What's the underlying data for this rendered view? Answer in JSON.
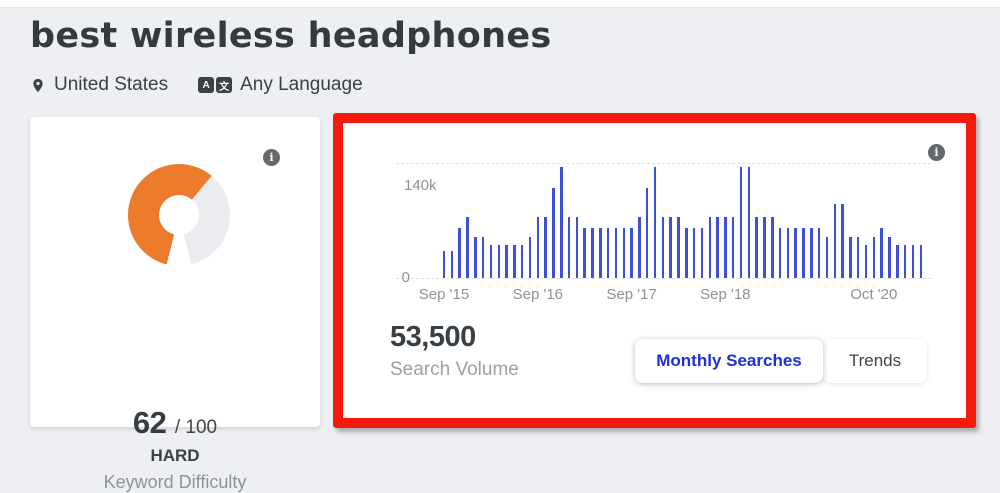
{
  "header": {
    "title": "best wireless headphones",
    "location": "United States",
    "language": "Any Language"
  },
  "difficulty": {
    "score": "62",
    "out_of": "/ 100",
    "level": "HARD",
    "label": "Keyword Difficulty",
    "gauge_color": "#ec7b2c",
    "track_color": "#ebecf0",
    "info_glyph": "i"
  },
  "volume": {
    "value": "53,500",
    "label": "Search Volume",
    "info_glyph": "i"
  },
  "tabs": {
    "monthly": "Monthly Searches",
    "trends": "Trends"
  },
  "chart_data": {
    "type": "bar",
    "title": "",
    "xlabel": "",
    "ylabel": "",
    "bar_color": "#3c50d8",
    "ylim": [
      0,
      140000
    ],
    "y_ticks": [
      "140k",
      "0"
    ],
    "grid": "dashed horizontal lines at 140k and 0",
    "legend": "none",
    "x_ticks": [
      {
        "bar_index": 0,
        "label": "Sep '15"
      },
      {
        "bar_index": 12,
        "label": "Sep '16"
      },
      {
        "bar_index": 24,
        "label": "Sep '17"
      },
      {
        "bar_index": 36,
        "label": "Sep '18"
      },
      {
        "bar_index": 55,
        "label": "Oct '20"
      }
    ],
    "values": [
      33100,
      33100,
      60500,
      74000,
      49500,
      49500,
      40500,
      40500,
      40500,
      40500,
      40500,
      49500,
      74000,
      74000,
      110000,
      135000,
      74000,
      74000,
      60500,
      60500,
      60500,
      60500,
      60500,
      60500,
      60500,
      74000,
      110000,
      135000,
      74000,
      74000,
      74000,
      60500,
      60500,
      60500,
      74000,
      74000,
      74000,
      74000,
      135000,
      135000,
      74000,
      74000,
      74000,
      60500,
      60500,
      60500,
      60500,
      60500,
      60500,
      49500,
      90500,
      90500,
      49500,
      49500,
      40500,
      49500,
      60500,
      49500,
      40500,
      40500,
      40500,
      40500
    ]
  }
}
